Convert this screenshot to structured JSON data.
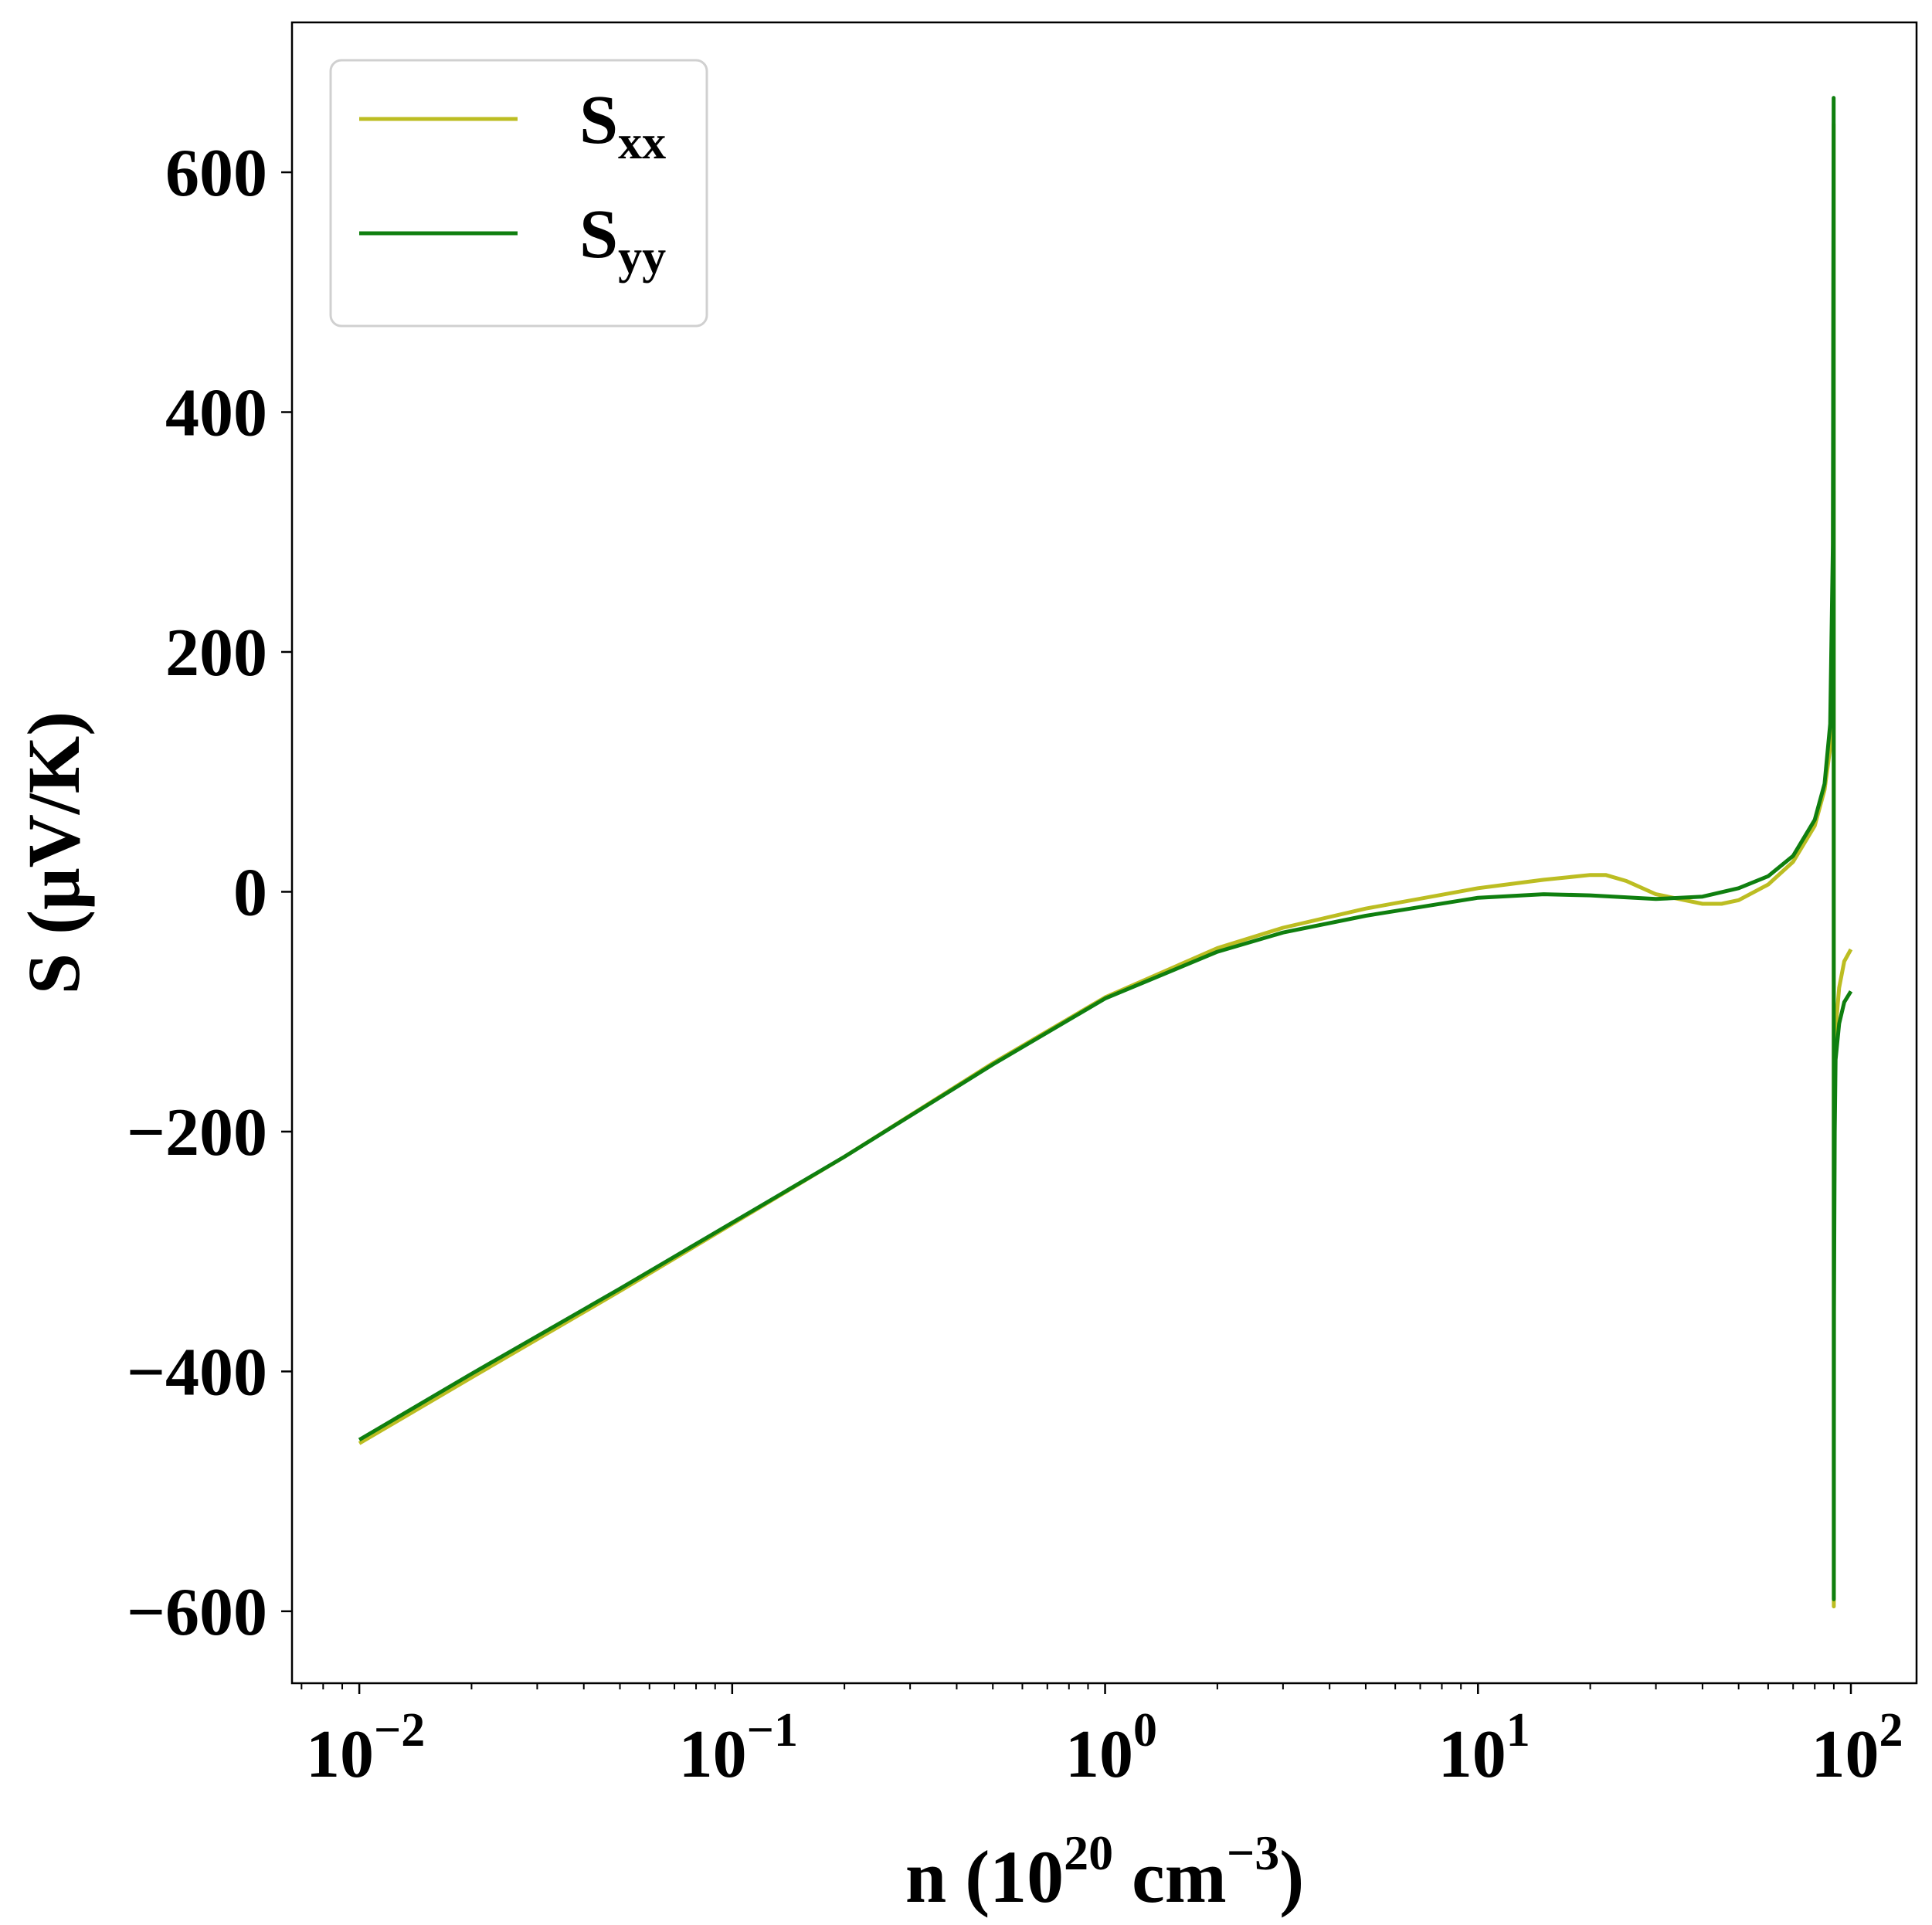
{
  "chart_data": {
    "type": "line",
    "xlabel": {
      "prefix": "n (10",
      "sup1": "20",
      "mid": " cm",
      "sup2": "−3",
      "suffix": ")"
    },
    "ylabel": "S (μV/K)",
    "xscale": "log",
    "xlim": [
      0.0066,
      150
    ],
    "ylim": [
      -660,
      725
    ],
    "grid": false,
    "legend_position": "top-left",
    "xticks": [
      {
        "value": 0.01,
        "base": "10",
        "exp": "−2"
      },
      {
        "value": 0.1,
        "base": "10",
        "exp": "−1"
      },
      {
        "value": 1,
        "base": "10",
        "exp": "0"
      },
      {
        "value": 10,
        "base": "10",
        "exp": "1"
      },
      {
        "value": 100,
        "base": "10",
        "exp": "2"
      }
    ],
    "yticks": [
      {
        "value": 600,
        "label": "600"
      },
      {
        "value": 400,
        "label": "400"
      },
      {
        "value": 200,
        "label": "200"
      },
      {
        "value": 0,
        "label": "0"
      },
      {
        "value": -200,
        "label": "−200"
      },
      {
        "value": -400,
        "label": "−400"
      },
      {
        "value": -600,
        "label": "−600"
      }
    ],
    "series": [
      {
        "name": "S",
        "name_sub": "xx",
        "color": "#bcbd22",
        "points": [
          [
            0.01,
            -460
          ],
          [
            0.02,
            -405
          ],
          [
            0.05,
            -333
          ],
          [
            0.1,
            -277
          ],
          [
            0.2,
            -221
          ],
          [
            0.5,
            -143
          ],
          [
            1,
            -88
          ],
          [
            2,
            -47
          ],
          [
            3,
            -30
          ],
          [
            5,
            -14
          ],
          [
            10,
            3
          ],
          [
            15,
            10
          ],
          [
            20,
            14
          ],
          [
            22,
            14
          ],
          [
            25,
            9
          ],
          [
            30,
            -2
          ],
          [
            40,
            -10
          ],
          [
            45,
            -10
          ],
          [
            50,
            -7
          ],
          [
            60,
            6
          ],
          [
            70,
            25
          ],
          [
            80,
            55
          ],
          [
            85,
            85
          ],
          [
            88,
            120
          ],
          [
            89.5,
            250
          ],
          [
            89.9,
            640
          ],
          [
            90.0,
            -596
          ],
          [
            90.1,
            -300
          ],
          [
            90.5,
            -160
          ],
          [
            91,
            -115
          ],
          [
            93,
            -80
          ],
          [
            96,
            -58
          ],
          [
            100,
            -48
          ]
        ]
      },
      {
        "name": "S",
        "name_sub": "yy",
        "color": "#0f7f0f",
        "points": [
          [
            0.01,
            -457
          ],
          [
            0.02,
            -402
          ],
          [
            0.05,
            -331
          ],
          [
            0.1,
            -276
          ],
          [
            0.2,
            -221
          ],
          [
            0.5,
            -144
          ],
          [
            1,
            -89
          ],
          [
            2,
            -50
          ],
          [
            3,
            -34
          ],
          [
            5,
            -20
          ],
          [
            10,
            -5
          ],
          [
            15,
            -2
          ],
          [
            20,
            -3
          ],
          [
            30,
            -6
          ],
          [
            40,
            -4
          ],
          [
            50,
            3
          ],
          [
            60,
            13
          ],
          [
            70,
            30
          ],
          [
            80,
            60
          ],
          [
            85,
            90
          ],
          [
            88,
            140
          ],
          [
            89.5,
            290
          ],
          [
            89.9,
            662
          ],
          [
            90.0,
            -590
          ],
          [
            90.1,
            -350
          ],
          [
            90.5,
            -200
          ],
          [
            91,
            -140
          ],
          [
            93,
            -110
          ],
          [
            96,
            -92
          ],
          [
            100,
            -83
          ]
        ]
      }
    ]
  }
}
